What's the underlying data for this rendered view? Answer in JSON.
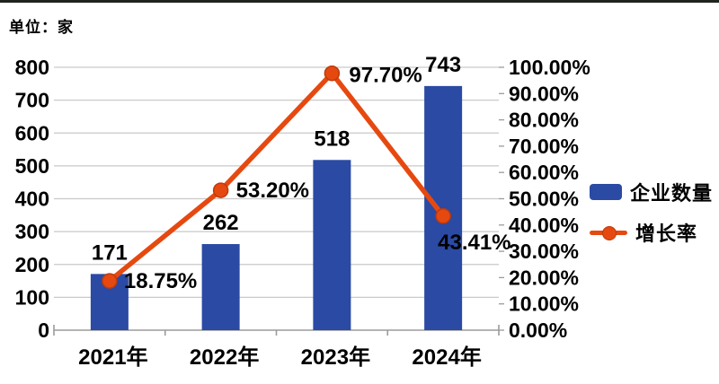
{
  "page": {
    "unit_label": "单位：家"
  },
  "chart_data": {
    "type": "combo",
    "title": "",
    "categories": [
      "2021年",
      "2022年",
      "2023年",
      "2024年"
    ],
    "series": [
      {
        "name": "企业数量",
        "type": "bar",
        "axis": "left",
        "values": [
          171,
          262,
          518,
          743
        ],
        "labels": [
          "171",
          "262",
          "518",
          "743"
        ],
        "color": "#2a4aa4"
      },
      {
        "name": "增长率",
        "type": "line",
        "axis": "right",
        "values": [
          18.75,
          53.2,
          97.7,
          43.41
        ],
        "labels": [
          "18.75%",
          "53.20%",
          "97.70%",
          "43.41%"
        ],
        "color": "#e64910",
        "marker_stroke": "#bf3a0b"
      }
    ],
    "left_axis": {
      "min": 0,
      "max": 800,
      "step": 100,
      "ticks": [
        "0",
        "100",
        "200",
        "300",
        "400",
        "500",
        "600",
        "700",
        "800"
      ]
    },
    "right_axis": {
      "min": 0,
      "max": 100,
      "step": 10,
      "ticks": [
        "0.00%",
        "10.00%",
        "20.00%",
        "30.00%",
        "40.00%",
        "50.00%",
        "60.00%",
        "70.00%",
        "80.00%",
        "90.00%",
        "100.00%"
      ]
    },
    "grid": true,
    "legend_position": "right",
    "colors": {
      "grid": "#c9c9c9",
      "axis": "#9b9b9b",
      "text": "#000000"
    }
  }
}
